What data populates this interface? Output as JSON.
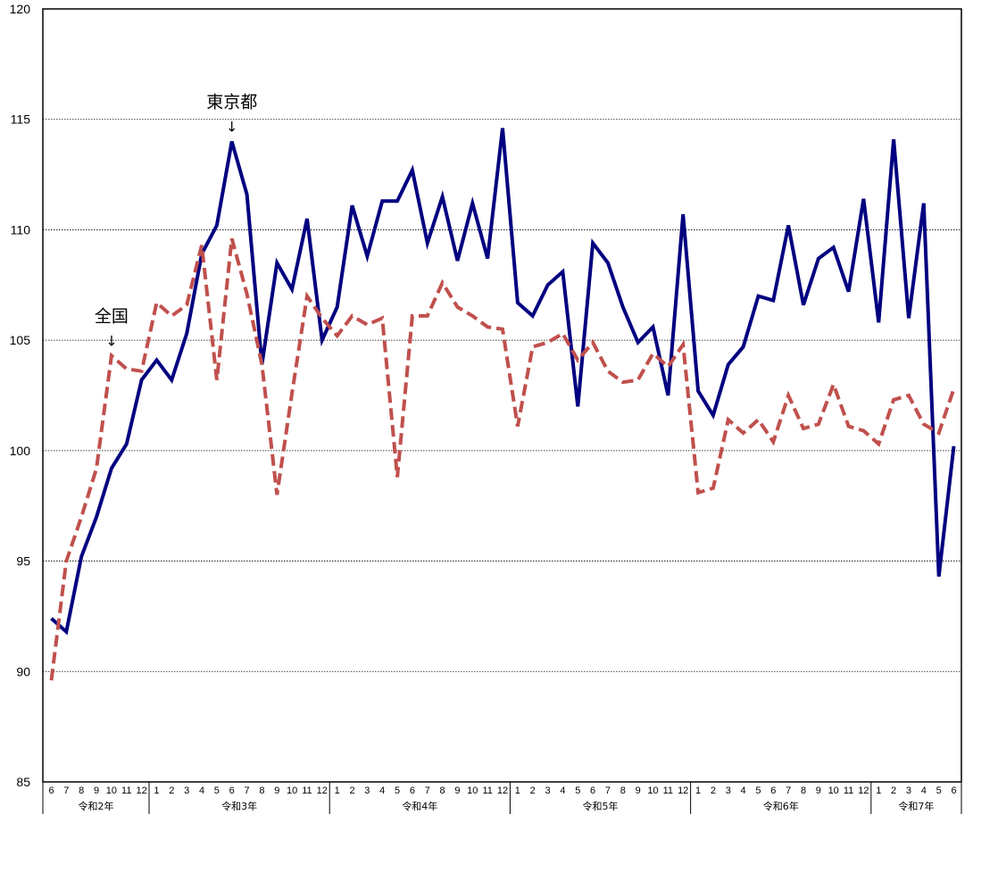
{
  "chart_data": {
    "type": "line",
    "title": "",
    "xlabel": "",
    "ylabel": "",
    "ylim": [
      85,
      120
    ],
    "yticks": [
      85,
      90,
      95,
      100,
      105,
      110,
      115,
      120
    ],
    "ytick_labels": [
      "85",
      "90",
      "95",
      "100",
      "105",
      "110",
      "115",
      "120"
    ],
    "grid": "horizontal dotted",
    "month_labels": [
      "6",
      "7",
      "8",
      "9",
      "10",
      "11",
      "12",
      "1",
      "2",
      "3",
      "4",
      "5",
      "6",
      "7",
      "8",
      "9",
      "10",
      "11",
      "12",
      "1",
      "2",
      "3",
      "4",
      "5",
      "6",
      "7",
      "8",
      "9",
      "10",
      "11",
      "12",
      "1",
      "2",
      "3",
      "4",
      "5",
      "6",
      "7",
      "8",
      "9",
      "10",
      "11",
      "12",
      "1",
      "2",
      "3",
      "4",
      "5",
      "6",
      "7",
      "8",
      "9",
      "10",
      "11",
      "12",
      "1",
      "2",
      "3",
      "4",
      "5",
      "6"
    ],
    "year_groups": [
      {
        "label": "令和2年",
        "count": 7
      },
      {
        "label": "令和3年",
        "count": 12
      },
      {
        "label": "令和4年",
        "count": 12
      },
      {
        "label": "令和5年",
        "count": 12
      },
      {
        "label": "令和6年",
        "count": 12
      },
      {
        "label": "令和7年",
        "count": 6
      }
    ],
    "series": [
      {
        "name": "東京都",
        "color": "#000080",
        "style": "solid",
        "values": [
          92.4,
          91.8,
          95.2,
          97.0,
          99.2,
          100.3,
          103.2,
          104.1,
          103.2,
          105.3,
          108.9,
          110.2,
          114.0,
          111.6,
          103.9,
          108.5,
          107.3,
          110.5,
          105.0,
          106.5,
          111.1,
          108.8,
          111.3,
          111.3,
          112.7,
          109.4,
          111.5,
          108.6,
          111.2,
          108.7,
          114.6,
          106.7,
          106.1,
          107.5,
          108.1,
          102.0,
          109.4,
          108.5,
          106.5,
          104.9,
          105.6,
          102.5,
          110.7,
          102.7,
          101.6,
          103.9,
          104.7,
          107.0,
          106.8,
          110.2,
          106.6,
          108.7,
          109.2,
          107.2,
          111.4,
          105.8,
          114.1,
          106.0,
          111.2,
          94.3,
          100.2
        ]
      },
      {
        "name": "全国",
        "color": "#C0504D",
        "style": "dashed",
        "values": [
          89.6,
          95.0,
          97.0,
          99.2,
          104.3,
          103.7,
          103.6,
          106.7,
          106.1,
          106.6,
          109.3,
          103.2,
          109.6,
          107.1,
          103.9,
          98.0,
          102.6,
          107.0,
          106.0,
          105.2,
          106.1,
          105.7,
          106.0,
          98.8,
          106.1,
          106.1,
          107.6,
          106.5,
          106.1,
          105.6,
          105.5,
          101.1,
          104.7,
          104.9,
          105.3,
          104.1,
          104.9,
          103.6,
          103.1,
          103.2,
          104.4,
          103.8,
          104.8,
          98.1,
          98.3,
          101.4,
          100.8,
          101.4,
          100.4,
          102.5,
          101.0,
          101.2,
          103.0,
          101.1,
          100.9,
          100.3,
          102.3,
          102.5,
          101.2,
          100.8,
          102.8
        ]
      }
    ],
    "annotations": [
      {
        "label": "東京都",
        "arrow": "↓",
        "series": "東京都",
        "month_index": 12
      },
      {
        "label": "全国",
        "arrow": "↓",
        "series": "全国",
        "month_index": 4
      }
    ]
  }
}
